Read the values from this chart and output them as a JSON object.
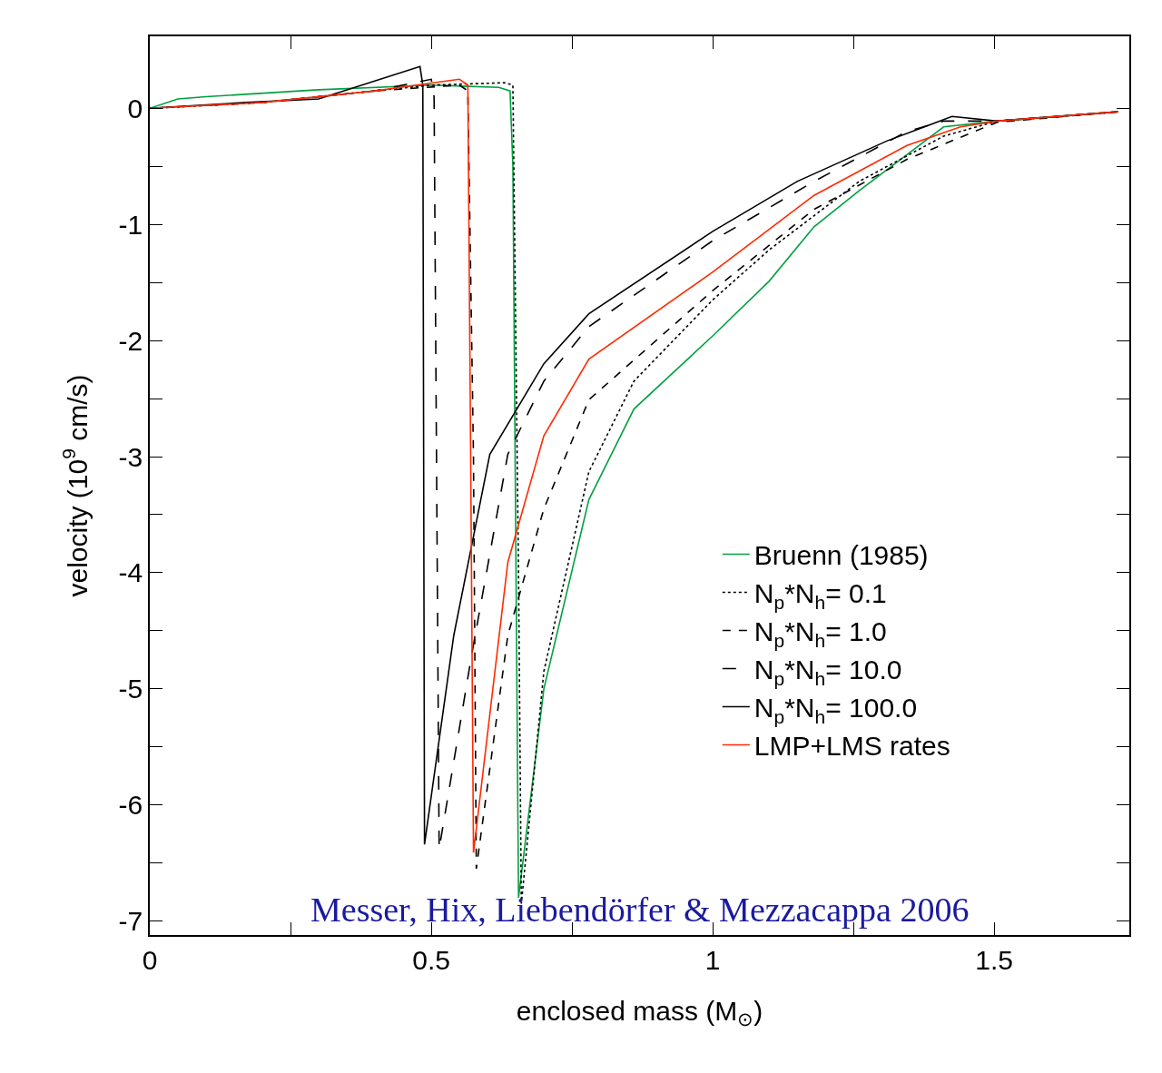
{
  "chart_data": {
    "type": "line",
    "xlabel": "enclosed mass (M$_{⊙}$)",
    "ylabel": "velocity (10$^{9}$ cm/s)",
    "xlim": [
      0,
      1.74
    ],
    "ylim": [
      -7.12,
      0.62
    ],
    "xticks": [
      0,
      {
        "value": 0.25,
        "label": null
      },
      0.5,
      {
        "value": 0.75,
        "label": null
      },
      1,
      {
        "value": 1.25,
        "label": null
      },
      1.5
    ],
    "yticks": [
      -7,
      {
        "value": -6.5,
        "label": null
      },
      -6,
      {
        "value": -5.5,
        "label": null
      },
      -5,
      {
        "value": -4.5,
        "label": null
      },
      -4,
      {
        "value": -3.5,
        "label": null
      },
      -3,
      {
        "value": -2.5,
        "label": null
      },
      -2,
      {
        "value": -1.5,
        "label": null
      },
      -1,
      {
        "value": -0.5,
        "label": null
      },
      0
    ],
    "legend": "right",
    "marker": "none",
    "annotations": [
      "Messer, Hix, Liebendörfer & Mezzacappa 2006"
    ],
    "series": [
      {
        "name": "Bruenn (1985)",
        "color": "#00a040",
        "line_style": "solid",
        "x": [
          0,
          0.05,
          0.1,
          0.3,
          0.5,
          0.62,
          0.64,
          0.645,
          0.655,
          0.7,
          0.78,
          0.86,
          1.0,
          1.1,
          1.18,
          1.26,
          1.345,
          1.41,
          1.505,
          1.72
        ],
        "values": [
          0,
          0.08,
          0.1,
          0.16,
          0.2,
          0.18,
          0.15,
          -0.5,
          -6.8,
          -5.0,
          -3.37,
          -2.59,
          -1.96,
          -1.49,
          -1.02,
          -0.71,
          -0.4,
          -0.16,
          -0.11,
          -0.03
        ]
      },
      {
        "name": "N$_{p}$*N$_{h}$= 0.1",
        "color": "#000000",
        "line_style": "dotted",
        "x": [
          0,
          0.2,
          0.4,
          0.5,
          0.63,
          0.645,
          0.655,
          0.66,
          0.7,
          0.78,
          0.86,
          1.0,
          1.1,
          1.26,
          1.41,
          1.505,
          1.72
        ],
        "values": [
          0,
          0.05,
          0.15,
          0.2,
          0.22,
          0.2,
          -4.0,
          -6.85,
          -4.85,
          -3.13,
          -2.35,
          -1.65,
          -1.22,
          -0.63,
          -0.24,
          -0.11,
          -0.03
        ]
      },
      {
        "name": "N$_{p}$*N$_{h}$= 1.0",
        "color": "#000000",
        "line_style": "dashed",
        "x": [
          0,
          0.2,
          0.4,
          0.55,
          0.565,
          0.575,
          0.58,
          0.636,
          0.7,
          0.78,
          1.0,
          1.18,
          1.345,
          1.505,
          1.72
        ],
        "values": [
          0,
          0.05,
          0.15,
          0.2,
          0.15,
          -3.0,
          -6.55,
          -4.54,
          -3.45,
          -2.51,
          -1.57,
          -0.87,
          -0.44,
          -0.12,
          -0.03
        ]
      },
      {
        "name": "N$_{p}$*N$_{h}$= 10.0",
        "color": "#000000",
        "line_style": "long dashed",
        "x": [
          0,
          0.2,
          0.4,
          0.5,
          0.505,
          0.514,
          0.572,
          0.636,
          0.7,
          0.78,
          1.0,
          1.18,
          1.345,
          1.41,
          1.505,
          1.72
        ],
        "values": [
          0,
          0.05,
          0.15,
          0.25,
          0.1,
          -6.38,
          -4.7,
          -2.98,
          -2.35,
          -1.88,
          -1.14,
          -0.63,
          -0.2,
          -0.11,
          -0.11,
          -0.03
        ]
      },
      {
        "name": "N$_{p}$*N$_{h}$= 100.0",
        "color": "#000000",
        "line_style": "solid",
        "x": [
          0,
          0.17,
          0.3,
          0.48,
          0.485,
          0.488,
          0.54,
          0.604,
          0.7,
          0.78,
          1.0,
          1.15,
          1.31,
          1.425,
          1.505,
          1.72
        ],
        "values": [
          0,
          0.05,
          0.08,
          0.36,
          0.2,
          -6.34,
          -4.54,
          -2.98,
          -2.2,
          -1.77,
          -1.06,
          -0.63,
          -0.28,
          -0.07,
          -0.11,
          -0.03
        ]
      },
      {
        "name": "LMP+LMS rates",
        "color": "#ff2a00",
        "line_style": "solid",
        "x": [
          0,
          0.2,
          0.4,
          0.55,
          0.565,
          0.57,
          0.575,
          0.636,
          0.7,
          0.78,
          1.0,
          1.18,
          1.345,
          1.44,
          1.505,
          1.72
        ],
        "values": [
          0,
          0.05,
          0.15,
          0.25,
          0.2,
          -3.0,
          -6.41,
          -3.91,
          -2.82,
          -2.16,
          -1.41,
          -0.75,
          -0.32,
          -0.16,
          -0.11,
          -0.03
        ]
      }
    ]
  }
}
